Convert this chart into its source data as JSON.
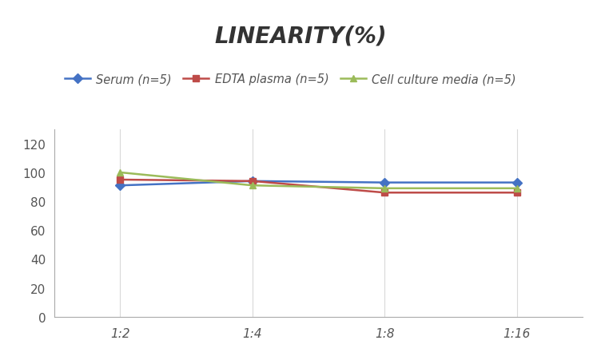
{
  "title": "LINEARITY(%)",
  "x_labels": [
    "1:2",
    "1:4",
    "1:8",
    "1:16"
  ],
  "x_positions": [
    0,
    1,
    2,
    3
  ],
  "series": [
    {
      "label": "Serum (n=5)",
      "values": [
        91,
        94,
        93,
        93
      ],
      "color": "#4472C4",
      "marker": "D",
      "linewidth": 1.8
    },
    {
      "label": "EDTA plasma (n=5)",
      "values": [
        95,
        94,
        86,
        86
      ],
      "color": "#BE4B48",
      "marker": "s",
      "linewidth": 1.8
    },
    {
      "label": "Cell culture media (n=5)",
      "values": [
        100,
        91,
        89,
        89
      ],
      "color": "#9BBB59",
      "marker": "^",
      "linewidth": 1.8
    }
  ],
  "ylim": [
    0,
    130
  ],
  "yticks": [
    0,
    20,
    40,
    60,
    80,
    100,
    120
  ],
  "background_color": "#FFFFFF",
  "grid_color": "#D9D9D9",
  "title_fontsize": 20,
  "legend_fontsize": 10.5,
  "tick_fontsize": 11
}
